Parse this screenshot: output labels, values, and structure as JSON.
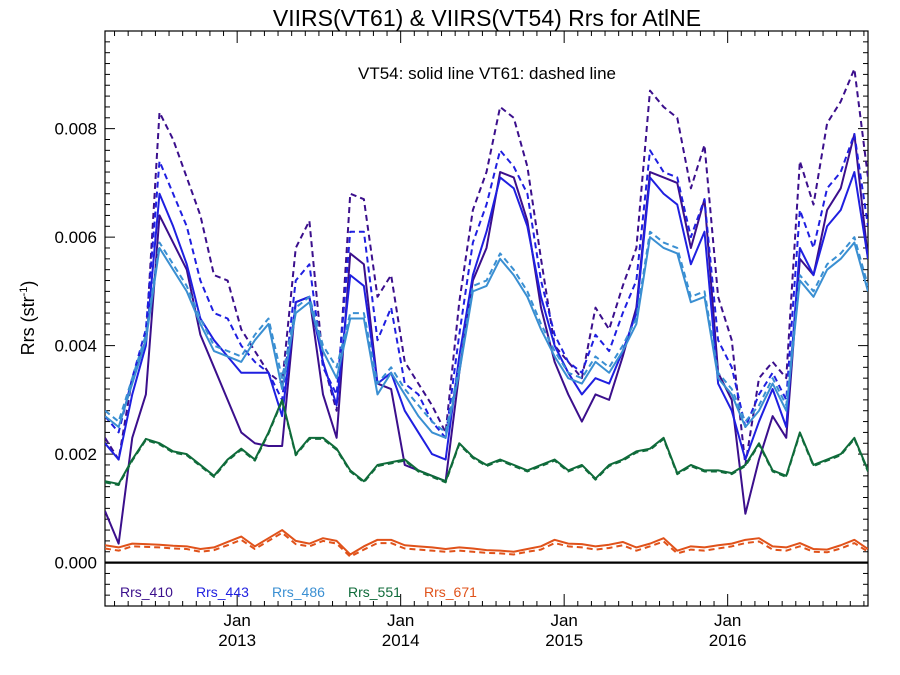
{
  "chart_data": {
    "type": "line",
    "title": "VIIRS(VT61) & VIIRS(VT54)  Rrs for AtlNE",
    "annotation": "VT54: solid line   VT61: dashed line",
    "ylabel_main": "Rrs (str",
    "ylabel_sup": "-1",
    "ylabel_close": ")",
    "ylim": [
      -0.0008,
      0.0098
    ],
    "y_ticks": [
      "0.000",
      "0.002",
      "0.004",
      "0.006",
      "0.008"
    ],
    "y_tick_values": [
      0,
      0.002,
      0.004,
      0.006,
      0.008
    ],
    "x_unit": "months since Jan 2013",
    "xlim": [
      -9.7,
      46.3
    ],
    "x_ticks": [
      {
        "month": "Jan",
        "year": "2013",
        "x": 0
      },
      {
        "month": "Jan",
        "year": "2014",
        "x": 12
      },
      {
        "month": "Jan",
        "year": "2015",
        "x": 24
      },
      {
        "month": "Jan",
        "year": "2016",
        "x": 36
      }
    ],
    "start_x": -9.7,
    "grid": false,
    "legend_position": "bottom-left",
    "line_styles": {
      "VT54": "solid",
      "VT61": "dashed"
    },
    "series": [
      {
        "name": "Rrs_410",
        "color": "#3b0f8c",
        "VT54": [
          0.00095,
          0.00035,
          0.0023,
          0.0031,
          0.0064,
          0.0059,
          0.0054,
          0.0042,
          0.0036,
          0.003,
          0.0024,
          0.0022,
          0.00215,
          0.00215,
          0.0048,
          0.0049,
          0.0031,
          0.0023,
          0.0057,
          0.0055,
          0.0033,
          0.0032,
          0.0018,
          0.0017,
          0.0016,
          0.0015,
          0.0035,
          0.0052,
          0.0058,
          0.0072,
          0.0071,
          0.0063,
          0.0047,
          0.0037,
          0.0031,
          0.0026,
          0.0031,
          0.003,
          0.0038,
          0.0047,
          0.0072,
          0.0071,
          0.007,
          0.0058,
          0.0067,
          0.0035,
          0.003,
          0.0009,
          0.0019,
          0.0027,
          0.0023,
          0.0056,
          0.0053,
          0.0065,
          0.0069,
          0.0079,
          0.0056
        ],
        "VT61": [
          0.0023,
          0.0019,
          0.0034,
          0.0041,
          0.0083,
          0.0078,
          0.0071,
          0.0064,
          0.0053,
          0.0052,
          0.0043,
          0.0039,
          0.0035,
          0.0033,
          0.0058,
          0.0063,
          0.0037,
          0.0028,
          0.0068,
          0.0067,
          0.0049,
          0.0053,
          0.0037,
          0.0033,
          0.0029,
          0.0024,
          0.0048,
          0.0065,
          0.0072,
          0.0084,
          0.0082,
          0.0073,
          0.0056,
          0.004,
          0.0037,
          0.0034,
          0.0047,
          0.0043,
          0.0051,
          0.0058,
          0.0087,
          0.0084,
          0.0082,
          0.0069,
          0.0077,
          0.0049,
          0.0041,
          0.0018,
          0.0034,
          0.0037,
          0.0034,
          0.0074,
          0.0066,
          0.0081,
          0.0085,
          0.0091,
          0.0071
        ]
      },
      {
        "name": "Rrs_443",
        "color": "#1f1fe0",
        "VT54": [
          0.0022,
          0.0019,
          0.0031,
          0.004,
          0.0068,
          0.0062,
          0.0055,
          0.0045,
          0.0041,
          0.0038,
          0.0035,
          0.0035,
          0.0035,
          0.0027,
          0.0048,
          0.0049,
          0.0037,
          0.0029,
          0.0053,
          0.0051,
          0.0033,
          0.0035,
          0.0028,
          0.0024,
          0.002,
          0.0019,
          0.0038,
          0.0053,
          0.0061,
          0.0071,
          0.0069,
          0.0062,
          0.0049,
          0.004,
          0.0035,
          0.0031,
          0.0034,
          0.0033,
          0.0039,
          0.0046,
          0.0071,
          0.0068,
          0.0066,
          0.0055,
          0.0061,
          0.0033,
          0.0028,
          0.0019,
          0.0026,
          0.0032,
          0.0025,
          0.0058,
          0.0053,
          0.0062,
          0.0065,
          0.0072,
          0.0056
        ],
        "VT61": [
          0.0027,
          0.0024,
          0.0034,
          0.0043,
          0.0074,
          0.0068,
          0.0062,
          0.0052,
          0.0046,
          0.0045,
          0.004,
          0.0037,
          0.0035,
          0.003,
          0.0052,
          0.0055,
          0.0036,
          0.0031,
          0.0061,
          0.0061,
          0.0041,
          0.0047,
          0.0033,
          0.0031,
          0.0026,
          0.0023,
          0.0042,
          0.0059,
          0.0066,
          0.0076,
          0.0073,
          0.0068,
          0.0052,
          0.0042,
          0.0037,
          0.0035,
          0.0042,
          0.0039,
          0.0046,
          0.0052,
          0.0076,
          0.0072,
          0.0071,
          0.006,
          0.0067,
          0.0041,
          0.0036,
          0.0025,
          0.0031,
          0.0035,
          0.003,
          0.0065,
          0.0058,
          0.0069,
          0.0072,
          0.0079,
          0.0062
        ]
      },
      {
        "name": "Rrs_486",
        "color": "#3a8fd2",
        "VT54": [
          0.0027,
          0.0025,
          0.0033,
          0.0041,
          0.0058,
          0.0054,
          0.005,
          0.0044,
          0.0039,
          0.0038,
          0.0037,
          0.0041,
          0.0044,
          0.0032,
          0.0046,
          0.0048,
          0.0039,
          0.0034,
          0.0045,
          0.0045,
          0.0031,
          0.0035,
          0.0031,
          0.0027,
          0.0024,
          0.0023,
          0.0035,
          0.005,
          0.0051,
          0.0056,
          0.0053,
          0.0049,
          0.0043,
          0.0038,
          0.0034,
          0.0033,
          0.0037,
          0.0035,
          0.0039,
          0.0044,
          0.006,
          0.0058,
          0.0057,
          0.0048,
          0.0049,
          0.0034,
          0.0031,
          0.0025,
          0.0028,
          0.0033,
          0.0028,
          0.0052,
          0.0049,
          0.0054,
          0.0056,
          0.0059,
          0.005
        ],
        "VT61": [
          0.0028,
          0.0026,
          0.0034,
          0.0042,
          0.0059,
          0.0055,
          0.0051,
          0.0045,
          0.004,
          0.0039,
          0.0038,
          0.0042,
          0.0045,
          0.0034,
          0.0047,
          0.0049,
          0.004,
          0.0036,
          0.0046,
          0.0046,
          0.0033,
          0.0036,
          0.0032,
          0.0029,
          0.0026,
          0.0024,
          0.0036,
          0.0051,
          0.0052,
          0.0057,
          0.0054,
          0.005,
          0.0044,
          0.0039,
          0.0035,
          0.0034,
          0.0038,
          0.0036,
          0.004,
          0.0045,
          0.0061,
          0.0059,
          0.0058,
          0.0049,
          0.005,
          0.0035,
          0.0032,
          0.0026,
          0.0029,
          0.0034,
          0.0029,
          0.0053,
          0.005,
          0.0055,
          0.0057,
          0.006,
          0.0051
        ]
      },
      {
        "name": "Rrs_551",
        "color": "#0f6b3a",
        "VT54": [
          0.0015,
          0.00145,
          0.0019,
          0.00228,
          0.0022,
          0.00205,
          0.002,
          0.0018,
          0.0016,
          0.0019,
          0.0021,
          0.0019,
          0.0024,
          0.003,
          0.002,
          0.0023,
          0.0023,
          0.0021,
          0.0017,
          0.0015,
          0.0018,
          0.00185,
          0.0019,
          0.0017,
          0.0016,
          0.0015,
          0.0022,
          0.00195,
          0.0018,
          0.0019,
          0.0018,
          0.0017,
          0.0018,
          0.0019,
          0.0017,
          0.0018,
          0.00155,
          0.0018,
          0.0019,
          0.00205,
          0.0021,
          0.0023,
          0.00165,
          0.0018,
          0.0017,
          0.0017,
          0.00165,
          0.0018,
          0.0022,
          0.0017,
          0.0016,
          0.0024,
          0.0018,
          0.0019,
          0.002,
          0.0023,
          0.0017
        ],
        "VT61": [
          0.00148,
          0.00143,
          0.00188,
          0.00226,
          0.00218,
          0.00203,
          0.00198,
          0.00178,
          0.00158,
          0.00188,
          0.00208,
          0.00188,
          0.00238,
          0.00298,
          0.00198,
          0.00228,
          0.00228,
          0.00208,
          0.00168,
          0.00148,
          0.00178,
          0.00183,
          0.00188,
          0.00168,
          0.00158,
          0.00148,
          0.00218,
          0.00193,
          0.00178,
          0.00188,
          0.00178,
          0.00168,
          0.00178,
          0.00188,
          0.00168,
          0.00178,
          0.00153,
          0.00178,
          0.00188,
          0.00203,
          0.00208,
          0.00228,
          0.00163,
          0.00178,
          0.00168,
          0.00168,
          0.00163,
          0.00178,
          0.00218,
          0.00168,
          0.00158,
          0.00238,
          0.00178,
          0.00188,
          0.00198,
          0.00228,
          0.00168
        ]
      },
      {
        "name": "Rrs_671",
        "color": "#e0521a",
        "VT54": [
          0.00032,
          0.00028,
          0.00035,
          0.00034,
          0.00033,
          0.00031,
          0.0003,
          0.00025,
          0.00028,
          0.00038,
          0.00048,
          0.0003,
          0.00045,
          0.0006,
          0.0004,
          0.00035,
          0.00045,
          0.0004,
          0.00015,
          0.0003,
          0.00042,
          0.00042,
          0.00032,
          0.0003,
          0.00028,
          0.00025,
          0.00028,
          0.00026,
          0.00023,
          0.00022,
          0.0002,
          0.00025,
          0.0003,
          0.00042,
          0.00035,
          0.00034,
          0.0003,
          0.00033,
          0.00038,
          0.00028,
          0.00035,
          0.00045,
          0.00022,
          0.0003,
          0.00028,
          0.00032,
          0.00035,
          0.00042,
          0.00045,
          0.0003,
          0.00028,
          0.00036,
          0.00025,
          0.00024,
          0.00032,
          0.00042,
          0.00025
        ],
        "VT61": [
          0.00026,
          0.00022,
          0.0003,
          0.00029,
          0.00028,
          0.00026,
          0.00025,
          0.0002,
          0.00023,
          0.00032,
          0.00042,
          0.00025,
          0.0004,
          0.00055,
          0.00034,
          0.0003,
          0.0004,
          0.00035,
          0.00011,
          0.00024,
          0.00036,
          0.00036,
          0.00026,
          0.00024,
          0.00022,
          0.0002,
          0.00022,
          0.0002,
          0.00018,
          0.00017,
          0.00015,
          0.0002,
          0.00024,
          0.00036,
          0.0003,
          0.00028,
          0.00024,
          0.00027,
          0.00032,
          0.00022,
          0.0003,
          0.00039,
          0.00017,
          0.00024,
          0.00022,
          0.00026,
          0.0003,
          0.00036,
          0.00039,
          0.00024,
          0.00022,
          0.0003,
          0.0002,
          0.00019,
          0.00026,
          0.00036,
          0.0002
        ]
      }
    ]
  }
}
